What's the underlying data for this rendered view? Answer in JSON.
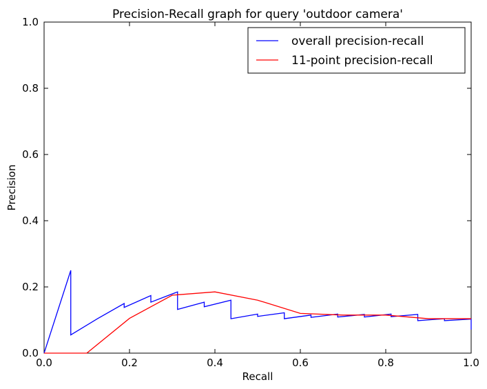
{
  "chart_data": {
    "type": "line",
    "title": "Precision-Recall graph for query 'outdoor camera'",
    "xlabel": "Recall",
    "ylabel": "Precision",
    "xlim": [
      0.0,
      1.0
    ],
    "ylim": [
      0.0,
      1.0
    ],
    "xticks": [
      "0.0",
      "0.2",
      "0.4",
      "0.6",
      "0.8",
      "1.0"
    ],
    "yticks": [
      "0.0",
      "0.2",
      "0.4",
      "0.6",
      "0.8",
      "1.0"
    ],
    "grid": false,
    "legend_position": "top-right",
    "series": [
      {
        "name": "overall precision-recall",
        "color": "#0000ff",
        "x": [
          0.0,
          0.0625,
          0.0625,
          0.125,
          0.1875,
          0.1875,
          0.25,
          0.25,
          0.3125,
          0.3125,
          0.375,
          0.375,
          0.4375,
          0.4375,
          0.5,
          0.5,
          0.5625,
          0.5625,
          0.625,
          0.625,
          0.6875,
          0.6875,
          0.75,
          0.75,
          0.8125,
          0.8125,
          0.875,
          0.875,
          0.9375,
          0.9375,
          1.0,
          1.0
        ],
        "y": [
          0.0,
          0.25,
          0.055,
          0.104,
          0.15,
          0.138,
          0.174,
          0.154,
          0.185,
          0.132,
          0.154,
          0.14,
          0.16,
          0.104,
          0.118,
          0.111,
          0.122,
          0.104,
          0.115,
          0.108,
          0.118,
          0.109,
          0.117,
          0.109,
          0.118,
          0.11,
          0.117,
          0.098,
          0.104,
          0.098,
          0.103,
          0.071
        ]
      },
      {
        "name": "11-point precision-recall",
        "color": "#ff0000",
        "x": [
          0.0,
          0.1,
          0.2,
          0.3,
          0.4,
          0.5,
          0.6,
          0.7,
          0.8,
          0.9,
          1.0
        ],
        "y": [
          0.0,
          0.0,
          0.105,
          0.175,
          0.185,
          0.16,
          0.12,
          0.115,
          0.115,
          0.104,
          0.104
        ]
      }
    ]
  }
}
